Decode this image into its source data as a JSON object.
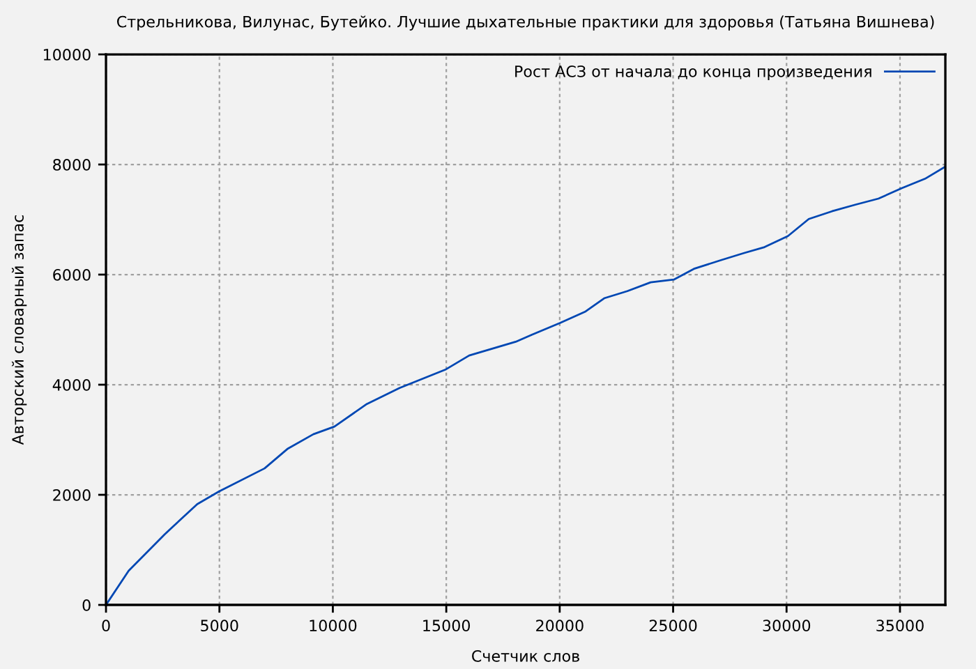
{
  "chart_data": {
    "type": "line",
    "title": "Стрельникова, Вилунас, Бутейко. Лучшие дыхательные практики для здоровья (Татьяна Вишнева)",
    "xlabel": "Счетчик слов",
    "ylabel": "Авторский словарный запас",
    "x": [
      0,
      1000,
      2580,
      4020,
      4980,
      6990,
      8020,
      9140,
      10070,
      11500,
      12940,
      14990,
      16010,
      18060,
      18780,
      20010,
      21140,
      21960,
      22980,
      24010,
      25030,
      25950,
      27090,
      28110,
      29030,
      30060,
      30980,
      32000,
      33030,
      34050,
      35080,
      36100,
      37000
    ],
    "series": [
      {
        "name": "Рост АСЗ от начала до конца произведения",
        "color": "#0047b3",
        "values": [
          0,
          620,
          1280,
          1830,
          2060,
          2480,
          2840,
          3100,
          3240,
          3650,
          3940,
          4280,
          4530,
          4780,
          4910,
          5120,
          5330,
          5570,
          5700,
          5860,
          5910,
          6110,
          6260,
          6390,
          6500,
          6700,
          7010,
          7150,
          7270,
          7380,
          7570,
          7740,
          7960
        ]
      }
    ],
    "xlim": [
      0,
      37000
    ],
    "xticks": [
      0,
      5000,
      10000,
      15000,
      20000,
      25000,
      30000,
      35000
    ],
    "ylim": [
      0,
      10000
    ],
    "yticks": [
      0,
      2000,
      4000,
      6000,
      8000,
      10000
    ],
    "grid": true,
    "legend": "top right",
    "line_style": "solid"
  }
}
